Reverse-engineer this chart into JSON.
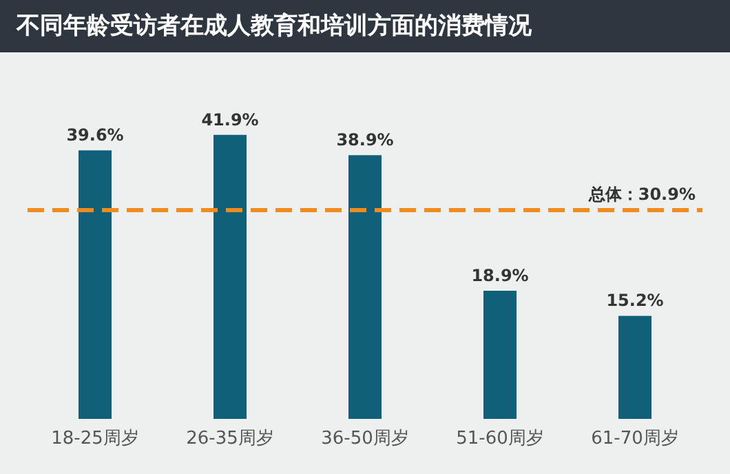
{
  "chart_data": {
    "type": "bar",
    "title": "不同年龄受访者在成人教育和培训方面的消费情况",
    "categories": [
      "18-25周岁",
      "26-35周岁",
      "36-50周岁",
      "51-60周岁",
      "61-70周岁"
    ],
    "values": [
      39.6,
      41.9,
      38.9,
      18.9,
      15.2
    ],
    "value_labels": [
      "39.6%",
      "41.9%",
      "38.9%",
      "18.9%",
      "15.2%"
    ],
    "color": "#10607a",
    "ref_lines": [
      {
        "axis": "y",
        "value": 30.9,
        "label": "总体：30.9%",
        "color": "#f08c1e",
        "line_style": "dashed"
      }
    ],
    "grid": false
  }
}
